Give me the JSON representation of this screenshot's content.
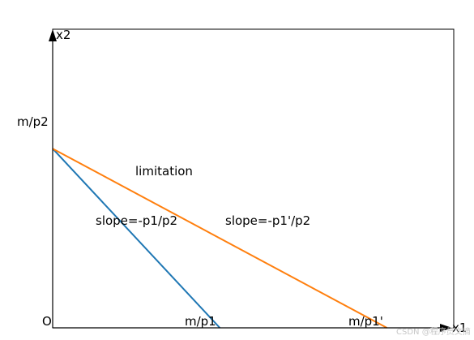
{
  "chart_data": {
    "type": "line",
    "title": "",
    "xlabel": "x1",
    "ylabel": "x2",
    "xlim": [
      0,
      12
    ],
    "ylim": [
      0,
      10
    ],
    "grid": false,
    "series": [
      {
        "x": [
          0,
          5
        ],
        "y": [
          6,
          0
        ],
        "color": "#1f77b4"
      },
      {
        "x": [
          0,
          10
        ],
        "y": [
          6,
          0
        ],
        "color": "#ff7f0e"
      }
    ],
    "points": [
      {
        "name": "origin",
        "label": "O",
        "x": 0,
        "y": 0
      },
      {
        "name": "m-over-p2",
        "label": "m/p2",
        "x": 0,
        "y": 6
      },
      {
        "name": "m-over-p1",
        "label": "m/p1",
        "x": 5,
        "y": 0
      },
      {
        "name": "m-over-p1-prime",
        "label": "m/p1'",
        "x": 10,
        "y": 0
      }
    ],
    "annotations": [
      {
        "name": "limitation",
        "text": "limitation",
        "x": 2.5,
        "y": 4.7
      },
      {
        "name": "slope-1",
        "text": "slope=-p1/p2",
        "x": 1.3,
        "y": 3.1
      },
      {
        "name": "slope-2",
        "text": "slope=-p1'/p2",
        "x": 5.2,
        "y": 3.1
      }
    ]
  },
  "watermark": "CSDN @程序员文摘"
}
